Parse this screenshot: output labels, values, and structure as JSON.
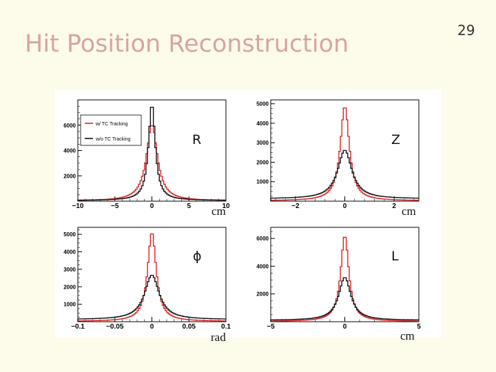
{
  "slide": {
    "title": "Hit Position Reconstruction",
    "page_number": "29"
  },
  "colors": {
    "with_tc": "#e02020",
    "without_tc": "#111111",
    "title": "#d9a3a3",
    "background": "#fdfbea"
  },
  "labels": {
    "r": "R",
    "z": "Z",
    "phi": "ϕ",
    "l": "L"
  },
  "units": {
    "r": "cm",
    "z": "cm",
    "phi": "rad",
    "l": "cm"
  },
  "chart_data": [
    {
      "type": "line",
      "variable": "R",
      "xlim": [
        -10,
        10
      ],
      "ylim": [
        0,
        8000
      ],
      "xticks": [
        "−10",
        "−5",
        "0",
        "5",
        "10"
      ],
      "xtick_values": [
        -10,
        -5,
        0,
        5,
        10
      ],
      "yticks": [
        "2000",
        "4000",
        "6000"
      ],
      "ytick_values": [
        2000,
        4000,
        6000
      ],
      "legend": {
        "position": "top-left",
        "entries": [
          "w/ TC Tracking",
          "w/o TC Tracking"
        ]
      },
      "series": [
        {
          "name": "w/ TC Tracking",
          "color": "#e02020",
          "peak": 6000,
          "width": 0.9,
          "base": 20
        },
        {
          "name": "w/o TC Tracking",
          "color": "#111111",
          "peak": 7600,
          "width": 0.55,
          "base": 60
        }
      ]
    },
    {
      "type": "line",
      "variable": "Z",
      "xlim": [
        -3,
        3
      ],
      "ylim": [
        0,
        5200
      ],
      "xticks": [
        "−2",
        "0",
        "2"
      ],
      "xtick_values": [
        -2,
        0,
        2
      ],
      "yticks": [
        "1000",
        "2000",
        "3000",
        "4000",
        "5000"
      ],
      "ytick_values": [
        1000,
        2000,
        3000,
        4000,
        5000
      ],
      "series": [
        {
          "name": "w/ TC Tracking",
          "color": "#e02020",
          "peak": 4850,
          "width": 0.22,
          "base": 20
        },
        {
          "name": "w/o TC Tracking",
          "color": "#111111",
          "peak": 2500,
          "width": 0.35,
          "base": 120
        }
      ]
    },
    {
      "type": "line",
      "variable": "phi",
      "xlim": [
        -0.1,
        0.1
      ],
      "ylim": [
        0,
        5400
      ],
      "xticks": [
        "−0.1",
        "−0.05",
        "0",
        "0.05",
        "0.1"
      ],
      "xtick_values": [
        -0.1,
        -0.05,
        0,
        0.05,
        0.1
      ],
      "yticks": [
        "1000",
        "2000",
        "3000",
        "4000",
        "5000"
      ],
      "ytick_values": [
        1000,
        2000,
        3000,
        4000,
        5000
      ],
      "series": [
        {
          "name": "w/ TC Tracking",
          "color": "#e02020",
          "peak": 5100,
          "width": 0.007,
          "base": 20
        },
        {
          "name": "w/o TC Tracking",
          "color": "#111111",
          "peak": 2550,
          "width": 0.012,
          "base": 120
        }
      ]
    },
    {
      "type": "line",
      "variable": "L",
      "xlim": [
        -5,
        5
      ],
      "ylim": [
        0,
        6800
      ],
      "xticks": [
        "−5",
        "0",
        "5"
      ],
      "xtick_values": [
        -5,
        0,
        5
      ],
      "yticks": [
        "2000",
        "4000",
        "6000"
      ],
      "ytick_values": [
        2000,
        4000,
        6000
      ],
      "series": [
        {
          "name": "w/ TC Tracking",
          "color": "#e02020",
          "peak": 6200,
          "width": 0.33,
          "base": 20
        },
        {
          "name": "w/o TC Tracking",
          "color": "#111111",
          "peak": 3100,
          "width": 0.5,
          "base": 100
        }
      ]
    }
  ]
}
